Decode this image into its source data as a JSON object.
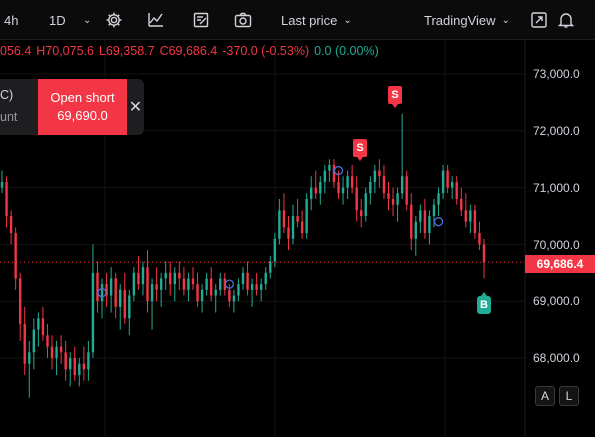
{
  "toolbar": {
    "symbol_partial": "4h",
    "interval": "1D",
    "chevron": "chevron-down-icon",
    "price_mode": "Last price",
    "brand": "TradingView",
    "icons": [
      "gear-icon",
      "indicators-icon",
      "note-icon",
      "camera-icon",
      "expand-icon",
      "bell-icon"
    ]
  },
  "ohlc": {
    "open": "056.4",
    "high": "H70,075.6",
    "low": "L69,358.7",
    "close": "C69,686.4",
    "change": "-370.0 (-0.53%)",
    "volume": "0.0 (0.00%)"
  },
  "order": {
    "left_line1": "C)",
    "left_line2": "unt",
    "action": "Open short",
    "price": "69,690.0",
    "close_icon": "close-icon"
  },
  "current_price": "69,686.4",
  "corner_buttons": {
    "auto": "A",
    "log": "L"
  },
  "markers": {
    "sell_label": "S",
    "buy_label": "B"
  },
  "colors": {
    "up": "#22ab94",
    "down": "#f23645",
    "background": "#000000"
  },
  "chart_data": {
    "type": "candlestick",
    "title": "",
    "xlabel": "",
    "ylabel": "",
    "y_ticks": [
      "73,000.0",
      "72,000.0",
      "71,000.0",
      "70,000.0",
      "69,000.0",
      "68,000.0"
    ],
    "y_tick_values": [
      73000,
      72000,
      71000,
      70000,
      69000,
      68000
    ],
    "ylim": [
      67000,
      73600
    ],
    "last_price": 69686.4,
    "grid": true,
    "candles": [
      [
        71000,
        71300,
        70900,
        71100
      ],
      [
        71100,
        71200,
        70300,
        70500
      ],
      [
        70500,
        70600,
        70000,
        70200
      ],
      [
        70200,
        70300,
        69200,
        69400
      ],
      [
        69400,
        69500,
        68300,
        68600
      ],
      [
        68600,
        68900,
        67700,
        67900
      ],
      [
        67900,
        68300,
        67300,
        68100
      ],
      [
        68100,
        68700,
        67800,
        68500
      ],
      [
        68500,
        68800,
        68200,
        68700
      ],
      [
        68700,
        68900,
        68300,
        68400
      ],
      [
        68400,
        68600,
        68000,
        68200
      ],
      [
        68200,
        68400,
        67800,
        68000
      ],
      [
        68000,
        68300,
        67700,
        68200
      ],
      [
        68200,
        68400,
        67900,
        68100
      ],
      [
        68100,
        68300,
        67600,
        67800
      ],
      [
        67800,
        68100,
        67500,
        68000
      ],
      [
        68000,
        68200,
        67600,
        67700
      ],
      [
        67700,
        68000,
        67500,
        67900
      ],
      [
        67900,
        68200,
        67600,
        67800
      ],
      [
        67800,
        68300,
        67600,
        68100
      ],
      [
        68100,
        70000,
        68000,
        69500
      ],
      [
        69500,
        69700,
        68800,
        69000
      ],
      [
        69000,
        69400,
        68700,
        69300
      ],
      [
        69300,
        69500,
        68900,
        69100
      ],
      [
        69100,
        69600,
        68800,
        69400
      ],
      [
        69400,
        69500,
        68700,
        68900
      ],
      [
        68900,
        69300,
        68500,
        69200
      ],
      [
        69200,
        69500,
        68600,
        68700
      ],
      [
        68700,
        69200,
        68400,
        69100
      ],
      [
        69100,
        69600,
        69000,
        69500
      ],
      [
        69500,
        69800,
        69200,
        69300
      ],
      [
        69300,
        69700,
        69100,
        69600
      ],
      [
        69600,
        69900,
        68800,
        69000
      ],
      [
        69000,
        69400,
        68500,
        69300
      ],
      [
        69300,
        69600,
        69000,
        69200
      ],
      [
        69200,
        69500,
        68900,
        69400
      ],
      [
        69400,
        69700,
        69200,
        69500
      ],
      [
        69500,
        69700,
        69100,
        69300
      ],
      [
        69300,
        69600,
        69000,
        69500
      ],
      [
        69500,
        69700,
        69200,
        69400
      ],
      [
        69400,
        69600,
        69100,
        69200
      ],
      [
        69200,
        69500,
        69000,
        69400
      ],
      [
        69400,
        69600,
        69200,
        69300
      ],
      [
        69300,
        69500,
        68900,
        69000
      ],
      [
        69000,
        69300,
        68800,
        69200
      ],
      [
        69200,
        69500,
        69100,
        69400
      ],
      [
        69400,
        69600,
        69000,
        69100
      ],
      [
        69100,
        69300,
        68800,
        69200
      ],
      [
        69200,
        69500,
        69100,
        69400
      ],
      [
        69400,
        69500,
        69100,
        69200
      ],
      [
        69200,
        69300,
        68900,
        69000
      ],
      [
        69000,
        69200,
        68800,
        69100
      ],
      [
        69100,
        69400,
        69000,
        69300
      ],
      [
        69300,
        69600,
        69200,
        69500
      ],
      [
        69500,
        69700,
        69100,
        69200
      ],
      [
        69200,
        69400,
        68900,
        69300
      ],
      [
        69300,
        69500,
        69100,
        69200
      ],
      [
        69200,
        69400,
        69000,
        69300
      ],
      [
        69300,
        69600,
        69200,
        69500
      ],
      [
        69500,
        69800,
        69400,
        69700
      ],
      [
        69700,
        70200,
        69600,
        70100
      ],
      [
        70100,
        70800,
        70000,
        70600
      ],
      [
        70600,
        70900,
        70200,
        70300
      ],
      [
        70300,
        70500,
        69900,
        70100
      ],
      [
        70100,
        70700,
        70000,
        70500
      ],
      [
        70500,
        70800,
        70300,
        70400
      ],
      [
        70400,
        70600,
        70100,
        70200
      ],
      [
        70200,
        70900,
        70100,
        70800
      ],
      [
        70800,
        71200,
        70600,
        71000
      ],
      [
        71000,
        71300,
        70800,
        70900
      ],
      [
        70900,
        71200,
        70700,
        71100
      ],
      [
        71100,
        71400,
        70900,
        71300
      ],
      [
        71300,
        71500,
        71100,
        71400
      ],
      [
        71400,
        71500,
        71000,
        71100
      ],
      [
        71100,
        71300,
        70800,
        70900
      ],
      [
        70900,
        71200,
        70700,
        71000
      ],
      [
        71000,
        71300,
        70800,
        71200
      ],
      [
        71200,
        71400,
        70900,
        71000
      ],
      [
        71000,
        71200,
        70400,
        70600
      ],
      [
        70600,
        70800,
        70300,
        70500
      ],
      [
        70500,
        71000,
        70400,
        70900
      ],
      [
        70900,
        71200,
        70700,
        71100
      ],
      [
        71100,
        71400,
        70900,
        71300
      ],
      [
        71300,
        71500,
        71000,
        71200
      ],
      [
        71200,
        71400,
        70800,
        70900
      ],
      [
        70900,
        71100,
        70600,
        70800
      ],
      [
        70800,
        71000,
        70500,
        70700
      ],
      [
        70700,
        71000,
        70400,
        70900
      ],
      [
        70900,
        72300,
        70800,
        71200
      ],
      [
        71200,
        71300,
        70600,
        70700
      ],
      [
        70700,
        70900,
        69900,
        70100
      ],
      [
        70100,
        70500,
        69800,
        70400
      ],
      [
        70400,
        70700,
        70200,
        70600
      ],
      [
        70600,
        70800,
        70100,
        70200
      ],
      [
        70200,
        70600,
        70000,
        70500
      ],
      [
        70500,
        70800,
        70300,
        70700
      ],
      [
        70700,
        71000,
        70500,
        70900
      ],
      [
        70900,
        71400,
        70800,
        71300
      ],
      [
        71300,
        71400,
        70900,
        71000
      ],
      [
        71000,
        71200,
        70800,
        71100
      ],
      [
        71100,
        71200,
        70700,
        70800
      ],
      [
        70800,
        71000,
        70500,
        70600
      ],
      [
        70600,
        70900,
        70300,
        70400
      ],
      [
        70400,
        70700,
        70200,
        70600
      ],
      [
        70600,
        70700,
        70100,
        70200
      ],
      [
        70200,
        70400,
        69900,
        70000
      ],
      [
        70000,
        70100,
        69400,
        69686
      ]
    ],
    "markers": [
      {
        "type": "sell",
        "index": 75,
        "price": 71500
      },
      {
        "type": "sell",
        "index": 91,
        "price": 72300
      },
      {
        "type": "buy",
        "index": 110,
        "price": 69300
      }
    ],
    "circles": [
      {
        "index": 22,
        "price": 69150
      },
      {
        "index": 50,
        "price": 69300
      },
      {
        "index": 74,
        "price": 71300
      },
      {
        "index": 96,
        "price": 70400
      }
    ]
  }
}
